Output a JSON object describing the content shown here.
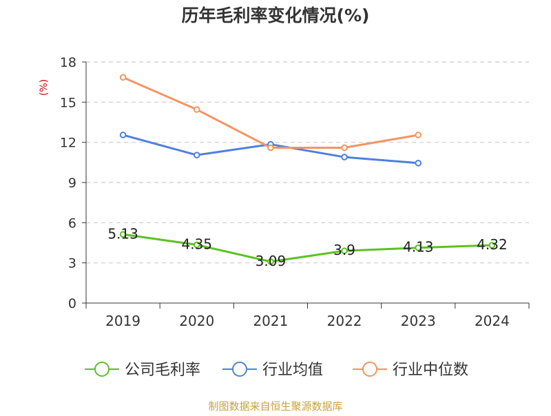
{
  "chart_data": {
    "type": "line",
    "title": "历年毛利率变化情况(%)",
    "ylabel": "(%)",
    "xlabel": "",
    "categories": [
      "2019",
      "2020",
      "2021",
      "2022",
      "2023",
      "2024"
    ],
    "ylim": [
      0,
      18
    ],
    "yticks": [
      0,
      3,
      6,
      9,
      12,
      15,
      18
    ],
    "grid": true,
    "legend_position": "bottom",
    "series": [
      {
        "name": "公司毛利率",
        "color": "#5cc121",
        "values": [
          5.13,
          4.35,
          3.09,
          3.9,
          4.13,
          4.32
        ],
        "labels": [
          "5.13",
          "4.35",
          "3.09",
          "3.9",
          "4.13",
          "4.32"
        ]
      },
      {
        "name": "行业均值",
        "color": "#4e7fe0",
        "values": [
          12.55,
          11.05,
          11.85,
          10.9,
          10.45,
          null
        ]
      },
      {
        "name": "行业中位数",
        "color": "#f59461",
        "values": [
          16.85,
          14.45,
          11.6,
          11.6,
          12.55,
          null
        ]
      }
    ]
  },
  "source_note": "制图数据来自恒生聚源数据库"
}
